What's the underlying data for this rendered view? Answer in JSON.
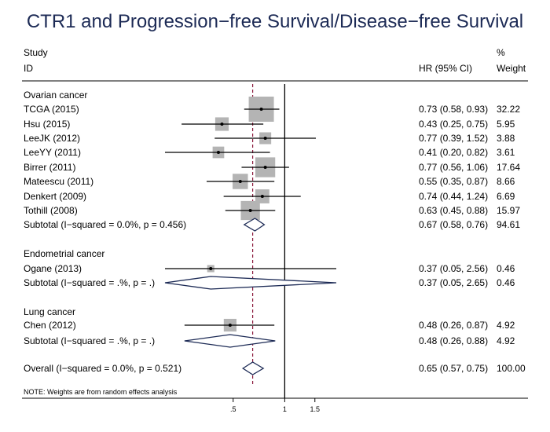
{
  "chart_data": {
    "type": "forest",
    "title": "CTR1 and Progression−free Survival/Disease−free Survival",
    "headers": {
      "study_line1": "Study",
      "study_line2": "ID",
      "hr": "HR (95% CI)",
      "weight_line1": "%",
      "weight_line2": "Weight"
    },
    "null_value": 1,
    "overall_hr": 0.65,
    "x_axis": {
      "scale": "log",
      "range": [
        0.2,
        2.0
      ],
      "ticks": [
        0.5,
        1,
        1.5
      ],
      "tick_labels": [
        ".5",
        "1",
        "1.5"
      ]
    },
    "groups": [
      {
        "name": "Ovarian cancer",
        "studies": [
          {
            "label": "TCGA (2015)",
            "hr": 0.73,
            "lo": 0.58,
            "hi": 0.93,
            "ci_text": "0.73 (0.58, 0.93)",
            "weight": "32.22",
            "w": 32.22
          },
          {
            "label": "Hsu (2015)",
            "hr": 0.43,
            "lo": 0.25,
            "hi": 0.75,
            "ci_text": "0.43 (0.25, 0.75)",
            "weight": "5.95",
            "w": 5.95
          },
          {
            "label": "LeeJK (2012)",
            "hr": 0.77,
            "lo": 0.39,
            "hi": 1.52,
            "ci_text": "0.77 (0.39, 1.52)",
            "weight": "3.88",
            "w": 3.88
          },
          {
            "label": "LeeYY (2011)",
            "hr": 0.41,
            "lo": 0.2,
            "hi": 0.82,
            "ci_text": "0.41 (0.20, 0.82)",
            "weight": "3.61",
            "w": 3.61
          },
          {
            "label": "Birrer (2011)",
            "hr": 0.77,
            "lo": 0.56,
            "hi": 1.06,
            "ci_text": "0.77 (0.56, 1.06)",
            "weight": "17.64",
            "w": 17.64
          },
          {
            "label": "Mateescu (2011)",
            "hr": 0.55,
            "lo": 0.35,
            "hi": 0.87,
            "ci_text": "0.55 (0.35, 0.87)",
            "weight": "8.66",
            "w": 8.66
          },
          {
            "label": "Denkert  (2009)",
            "hr": 0.74,
            "lo": 0.44,
            "hi": 1.24,
            "ci_text": "0.74 (0.44, 1.24)",
            "weight": "6.69",
            "w": 6.69
          },
          {
            "label": "Tothill (2008)",
            "hr": 0.63,
            "lo": 0.45,
            "hi": 0.88,
            "ci_text": "0.63 (0.45, 0.88)",
            "weight": "15.97",
            "w": 15.97
          }
        ],
        "subtotal": {
          "label": "Subtotal  (I−squared = 0.0%, p = 0.456)",
          "hr": 0.67,
          "lo": 0.58,
          "hi": 0.76,
          "ci_text": "0.67 (0.58, 0.76)",
          "weight": "94.61"
        }
      },
      {
        "name": "Endometrial cancer",
        "studies": [
          {
            "label": "Ogane (2013)",
            "hr": 0.37,
            "lo": 0.05,
            "hi": 2.56,
            "ci_text": "0.37 (0.05, 2.56)",
            "weight": "0.46",
            "w": 0.46
          }
        ],
        "subtotal": {
          "label": "Subtotal  (I−squared = .%, p = .)",
          "hr": 0.37,
          "lo": 0.05,
          "hi": 2.65,
          "ci_text": "0.37 (0.05, 2.65)",
          "weight": "0.46"
        }
      },
      {
        "name": "Lung cancer",
        "studies": [
          {
            "label": "Chen (2012)",
            "hr": 0.48,
            "lo": 0.26,
            "hi": 0.87,
            "ci_text": "0.48 (0.26, 0.87)",
            "weight": "4.92",
            "w": 4.92
          }
        ],
        "subtotal": {
          "label": "Subtotal  (I−squared = .%, p = .)",
          "hr": 0.48,
          "lo": 0.26,
          "hi": 0.88,
          "ci_text": "0.48 (0.26, 0.88)",
          "weight": "4.92"
        }
      }
    ],
    "overall": {
      "label": "Overall  (I−squared = 0.0%, p = 0.521)",
      "hr": 0.65,
      "lo": 0.57,
      "hi": 0.75,
      "ci_text": "0.65 (0.57, 0.75)",
      "weight": "100.00"
    },
    "note": "NOTE: Weights are from random effects analysis",
    "colors": {
      "title": "#1c2a55",
      "box": "#b4b4b4",
      "diamond": "#1c2a55",
      "ref_line": "#8b1a3c",
      "axis": "#000000"
    }
  }
}
